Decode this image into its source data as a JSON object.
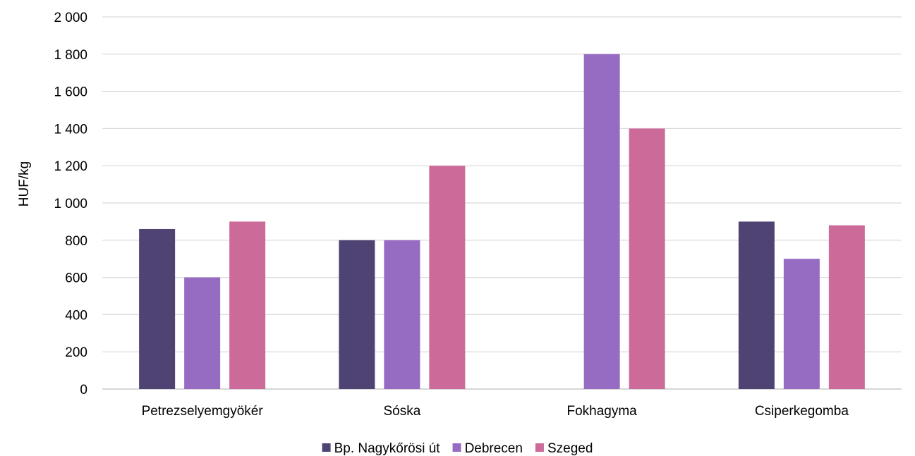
{
  "chart_data": {
    "type": "bar",
    "title": "",
    "xlabel": "",
    "ylabel": "HUF/kg",
    "ylim": [
      0,
      2000
    ],
    "yticks": [
      0,
      200,
      400,
      600,
      800,
      1000,
      1200,
      1400,
      1600,
      1800,
      2000
    ],
    "ytick_labels": [
      "0",
      "200",
      "400",
      "600",
      "800",
      "1 000",
      "1 200",
      "1 400",
      "1 600",
      "1 800",
      "2 000"
    ],
    "grid": true,
    "legend_position": "bottom",
    "categories": [
      "Petrezselyemgyökér",
      "Sóska",
      "Fokhagyma",
      "Csiperkegomba"
    ],
    "series": [
      {
        "name": "Bp. Nagykőrösi út",
        "color": "#4e4372",
        "values": [
          860,
          800,
          null,
          900
        ]
      },
      {
        "name": "Debrecen",
        "color": "#966cc2",
        "values": [
          600,
          800,
          1800,
          700
        ]
      },
      {
        "name": "Szeged",
        "color": "#cc6b99",
        "values": [
          900,
          1200,
          1400,
          880
        ]
      }
    ]
  }
}
